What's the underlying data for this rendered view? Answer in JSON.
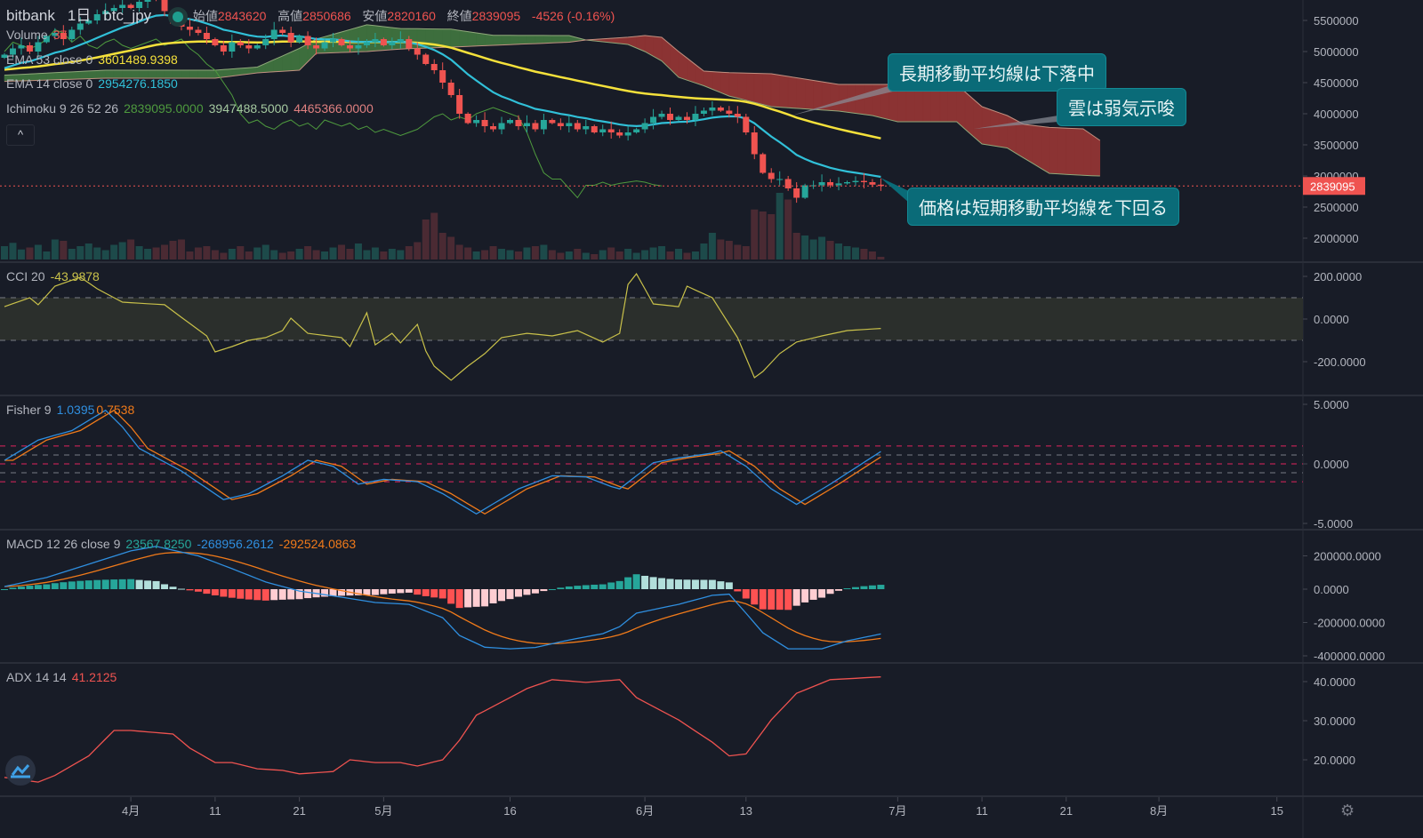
{
  "header": {
    "exchange": "bitbank",
    "interval": "1日",
    "symbol": "btc_jpy",
    "open_label": "始値",
    "open": "2843620",
    "high_label": "高値",
    "high": "2850686",
    "low_label": "安値",
    "low": "2820160",
    "close_label": "終値",
    "close": "2839095",
    "change": "-4526 (-0.16%)"
  },
  "legend": {
    "volume_label": "Volume",
    "volume_value": "37",
    "ema53_label": "EMA 53 close 0",
    "ema53_value": "3601489.9398",
    "ema14_label": "EMA 14 close 0",
    "ema14_value": "2954276.1850",
    "ichimoku_label": "Ichimoku 9 26 52 26",
    "ichimoku_v1": "2839095.0000",
    "ichimoku_v2": "3947488.5000",
    "ichimoku_v3": "4465366.0000",
    "collapse": "^",
    "cci_label": "CCI 20",
    "cci_value": "-43.9878",
    "fisher_label": "Fisher 9",
    "fisher_value": "1.0395",
    "fisher_trigger": "0.7538",
    "macd_label": "MACD 12 26 close 9",
    "macd_hist": "23567.8250",
    "macd_value": "-268956.2612",
    "macd_signal": "-292524.0863",
    "adx_label": "ADX 14 14",
    "adx_value": "41.2125"
  },
  "annotations": [
    "長期移動平均線は下落中",
    "雲は弱気示唆",
    "価格は短期移動平均線を下回る"
  ],
  "colors": {
    "up": "#26a69a",
    "down": "#ef5350",
    "ema14": "#31c0d8",
    "ema53": "#f5e13b",
    "cloud_bull": "#3d6e3d",
    "cloud_bear": "#8b3333",
    "chikou": "#4e9a3e",
    "cci": "#c9c14a",
    "fisher": "#2f8fe0",
    "trigger": "#f07a1a",
    "macd": "#2f8fe0",
    "signal": "#f07a1a",
    "adx": "#ef5350",
    "note": "#0a6b78"
  },
  "chart_data": {
    "type": "candlestick",
    "title": "bitbank 1日 btc_jpy",
    "price_unit": "thousand JPY",
    "closes": [
      4950,
      5050,
      5100,
      5000,
      5150,
      5250,
      5300,
      5200,
      5350,
      5450,
      5500,
      5600,
      5650,
      5700,
      5750,
      5700,
      5800,
      5900,
      5850,
      5650,
      5450,
      5400,
      5350,
      5300,
      5200,
      5100,
      5000,
      5150,
      5100,
      5050,
      5100,
      5200,
      5350,
      5300,
      5150,
      5250,
      5100,
      5050,
      5150,
      5200,
      5100,
      5050,
      5100,
      5150,
      5200,
      5100,
      5150,
      5200,
      5050,
      4950,
      4800,
      4700,
      4500,
      4300,
      4000,
      3850,
      3900,
      3800,
      3750,
      3850,
      3900,
      3800,
      3850,
      3750,
      3900,
      3850,
      3800,
      3850,
      3750,
      3800,
      3700,
      3750,
      3700,
      3650,
      3700,
      3750,
      3850,
      3950,
      4000,
      3900,
      3950,
      3900,
      4000,
      4050,
      4100,
      4050,
      4000,
      3950,
      3700,
      3350,
      3050,
      2950,
      2950,
      2800,
      2650,
      2850,
      2850,
      2900,
      2850,
      2880,
      2900,
      2920,
      2900,
      2860,
      2839
    ],
    "volumes": [
      20,
      25,
      15,
      18,
      22,
      12,
      30,
      28,
      16,
      20,
      24,
      18,
      14,
      22,
      26,
      30,
      20,
      16,
      18,
      22,
      28,
      30,
      12,
      18,
      20,
      14,
      10,
      16,
      20,
      12,
      18,
      22,
      14,
      10,
      12,
      16,
      20,
      14,
      12,
      18,
      22,
      16,
      24,
      14,
      18,
      12,
      16,
      14,
      20,
      26,
      60,
      70,
      40,
      34,
      22,
      18,
      12,
      14,
      20,
      16,
      14,
      12,
      18,
      20,
      22,
      14,
      10,
      12,
      16,
      10,
      8,
      14,
      18,
      12,
      16,
      10,
      14,
      18,
      20,
      12,
      16,
      10,
      12,
      24,
      40,
      30,
      28,
      22,
      20,
      75,
      72,
      68,
      100,
      90,
      40,
      36,
      30,
      34,
      28,
      24,
      20,
      18,
      16,
      12,
      4
    ],
    "last_price": "2839095",
    "ichimoku_cloud": [
      [
        0,
        4620,
        4520
      ],
      [
        12,
        4700,
        4571
      ],
      [
        25,
        4700,
        4571
      ],
      [
        30,
        4750,
        4657
      ],
      [
        35,
        5050,
        4700
      ],
      [
        37,
        5200,
        4971
      ],
      [
        43,
        5430,
        5000
      ],
      [
        47,
        5370,
        5040
      ],
      [
        53,
        5360,
        5071
      ],
      [
        58,
        5260,
        5100
      ],
      [
        67,
        5257,
        5150
      ],
      [
        69,
        5186,
        5186
      ],
      [
        74,
        5114,
        5230
      ],
      [
        76,
        5000,
        5257
      ],
      [
        78,
        4850,
        5229
      ],
      [
        80,
        4586,
        5000
      ],
      [
        83,
        4450,
        4686
      ],
      [
        86,
        4285,
        4660
      ],
      [
        91,
        4114,
        4643
      ],
      [
        99,
        4043,
        4471
      ],
      [
        103,
        3971,
        4471
      ],
      [
        106,
        3871,
        4471
      ],
      [
        113,
        3871,
        4471
      ],
      [
        116,
        3514,
        4114
      ],
      [
        119,
        3450,
        3971
      ],
      [
        121,
        3285,
        3829
      ],
      [
        124,
        3042,
        3780
      ],
      [
        128,
        3010,
        3757
      ],
      [
        130,
        3000,
        3571
      ]
    ],
    "price_axis": [
      {
        "label": "5500000",
        "value": 5500
      },
      {
        "label": "5000000",
        "value": 5000
      },
      {
        "label": "4500000",
        "value": 4500
      },
      {
        "label": "4000000",
        "value": 4000
      },
      {
        "label": "3500000",
        "value": 3500
      },
      {
        "label": "3000000",
        "value": 3000
      },
      {
        "label": "2500000",
        "value": 2500
      },
      {
        "label": "2000000",
        "value": 2000
      }
    ],
    "time_axis": [
      {
        "label": "4月",
        "day": 15
      },
      {
        "label": "11",
        "day": 25
      },
      {
        "label": "21",
        "day": 35
      },
      {
        "label": "5月",
        "day": 45
      },
      {
        "label": "16",
        "day": 60
      },
      {
        "label": "6月",
        "day": 76
      },
      {
        "label": "13",
        "day": 88
      },
      {
        "label": "7月",
        "day": 106
      },
      {
        "label": "11",
        "day": 116
      },
      {
        "label": "21",
        "day": 126
      },
      {
        "label": "8月",
        "day": 137
      },
      {
        "label": "15",
        "day": 151
      }
    ],
    "cci": {
      "levels": [
        100,
        -100
      ],
      "axis": [
        {
          "label": "200.0000",
          "value": 200
        },
        {
          "label": "0.0000",
          "value": 0
        },
        {
          "label": "-200.0000",
          "value": -200
        }
      ],
      "points": [
        [
          0,
          58
        ],
        [
          3,
          100
        ],
        [
          4,
          67
        ],
        [
          6,
          154
        ],
        [
          9,
          196
        ],
        [
          11,
          142
        ],
        [
          14,
          79
        ],
        [
          19,
          67
        ],
        [
          21,
          8
        ],
        [
          24,
          -79
        ],
        [
          25,
          -154
        ],
        [
          27,
          -129
        ],
        [
          29,
          -100
        ],
        [
          31,
          -87
        ],
        [
          33,
          -54
        ],
        [
          34,
          4
        ],
        [
          36,
          -67
        ],
        [
          40,
          -87
        ],
        [
          41,
          -129
        ],
        [
          43,
          29
        ],
        [
          44,
          -121
        ],
        [
          46,
          -67
        ],
        [
          47,
          -112
        ],
        [
          49,
          -25
        ],
        [
          50,
          -150
        ],
        [
          51,
          -221
        ],
        [
          53,
          -287
        ],
        [
          55,
          -221
        ],
        [
          57,
          -162
        ],
        [
          59,
          -87
        ],
        [
          62,
          -67
        ],
        [
          65,
          -79
        ],
        [
          68,
          -54
        ],
        [
          71,
          -108
        ],
        [
          73,
          -67
        ],
        [
          74,
          162
        ],
        [
          75,
          212
        ],
        [
          77,
          71
        ],
        [
          80,
          58
        ],
        [
          81,
          154
        ],
        [
          84,
          100
        ],
        [
          85,
          37
        ],
        [
          87,
          -87
        ],
        [
          89,
          -275
        ],
        [
          90,
          -246
        ],
        [
          92,
          -162
        ],
        [
          94,
          -108
        ],
        [
          97,
          -79
        ],
        [
          100,
          -54
        ],
        [
          104,
          -44
        ]
      ]
    },
    "fisher": {
      "levels": [
        1.5,
        0.75,
        0,
        -0.75,
        -1.5
      ],
      "axis": [
        {
          "label": "5.0000",
          "value": 5
        },
        {
          "label": "0.0000",
          "value": 0
        },
        {
          "label": "-5.0000",
          "value": -5
        }
      ],
      "points": [
        [
          0,
          0.3
        ],
        [
          4,
          2.0
        ],
        [
          8,
          2.8
        ],
        [
          12,
          4.5
        ],
        [
          14,
          3.1
        ],
        [
          16,
          1.3
        ],
        [
          21,
          -0.6
        ],
        [
          26,
          -3.0
        ],
        [
          29,
          -2.5
        ],
        [
          33,
          -1.0
        ],
        [
          36,
          0.3
        ],
        [
          39,
          -0.2
        ],
        [
          42,
          -1.7
        ],
        [
          45,
          -1.3
        ],
        [
          49,
          -1.5
        ],
        [
          52,
          -2.5
        ],
        [
          56,
          -4.2
        ],
        [
          61,
          -2.1
        ],
        [
          65,
          -1.0
        ],
        [
          69,
          -1.1
        ],
        [
          72,
          -1.9
        ],
        [
          73,
          -2.1
        ],
        [
          77,
          0.1
        ],
        [
          80,
          0.5
        ],
        [
          84,
          0.9
        ],
        [
          85,
          1.1
        ],
        [
          88,
          -0.2
        ],
        [
          91,
          -2.1
        ],
        [
          94,
          -3.4
        ],
        [
          98,
          -1.7
        ],
        [
          104,
          1.04
        ]
      ]
    },
    "macd": {
      "unit": "thousand",
      "axis": [
        {
          "label": "200000.0000",
          "value": 200
        },
        {
          "label": "0.0000",
          "value": 0
        },
        {
          "label": "-200000.0000",
          "value": -200
        },
        {
          "label": "-400000.0000",
          "value": -400
        }
      ],
      "points": [
        [
          0,
          16
        ],
        [
          5,
          70
        ],
        [
          10,
          150
        ],
        [
          15,
          230
        ],
        [
          18,
          257
        ],
        [
          23,
          200
        ],
        [
          27,
          123
        ],
        [
          31,
          43
        ],
        [
          35,
          -11
        ],
        [
          40,
          -48
        ],
        [
          44,
          -80
        ],
        [
          48,
          -91
        ],
        [
          52,
          -171
        ],
        [
          54,
          -278
        ],
        [
          57,
          -348
        ],
        [
          60,
          -358
        ],
        [
          63,
          -350
        ],
        [
          67,
          -305
        ],
        [
          71,
          -267
        ],
        [
          73,
          -225
        ],
        [
          75,
          -144
        ],
        [
          80,
          -91
        ],
        [
          84,
          -37
        ],
        [
          86,
          -30
        ],
        [
          88,
          -144
        ],
        [
          90,
          -262
        ],
        [
          93,
          -358
        ],
        [
          97,
          -358
        ],
        [
          100,
          -310
        ],
        [
          104,
          -269
        ]
      ]
    },
    "adx": {
      "axis": [
        {
          "label": "40.0000",
          "value": 40
        },
        {
          "label": "30.0000",
          "value": 30
        },
        {
          "label": "20.0000",
          "value": 20
        }
      ],
      "points": [
        [
          0,
          15.5
        ],
        [
          4,
          14.3
        ],
        [
          6,
          16
        ],
        [
          10,
          21
        ],
        [
          13,
          27.5
        ],
        [
          15,
          27.5
        ],
        [
          20,
          26.6
        ],
        [
          22,
          23
        ],
        [
          25,
          19.3
        ],
        [
          27,
          19.3
        ],
        [
          30,
          17.7
        ],
        [
          33,
          17.3
        ],
        [
          35,
          16.4
        ],
        [
          39,
          17
        ],
        [
          41,
          20
        ],
        [
          44,
          19.3
        ],
        [
          47,
          19.3
        ],
        [
          49,
          18.4
        ],
        [
          52,
          20
        ],
        [
          54,
          25
        ],
        [
          56,
          31.4
        ],
        [
          59,
          34.8
        ],
        [
          62,
          38.2
        ],
        [
          65,
          40.5
        ],
        [
          69,
          39.8
        ],
        [
          73,
          40.5
        ],
        [
          75,
          35.9
        ],
        [
          80,
          30.2
        ],
        [
          84,
          24.5
        ],
        [
          86,
          21
        ],
        [
          88,
          21.5
        ],
        [
          91,
          30.2
        ],
        [
          94,
          37
        ],
        [
          98,
          40.5
        ],
        [
          104,
          41.2
        ]
      ]
    }
  }
}
